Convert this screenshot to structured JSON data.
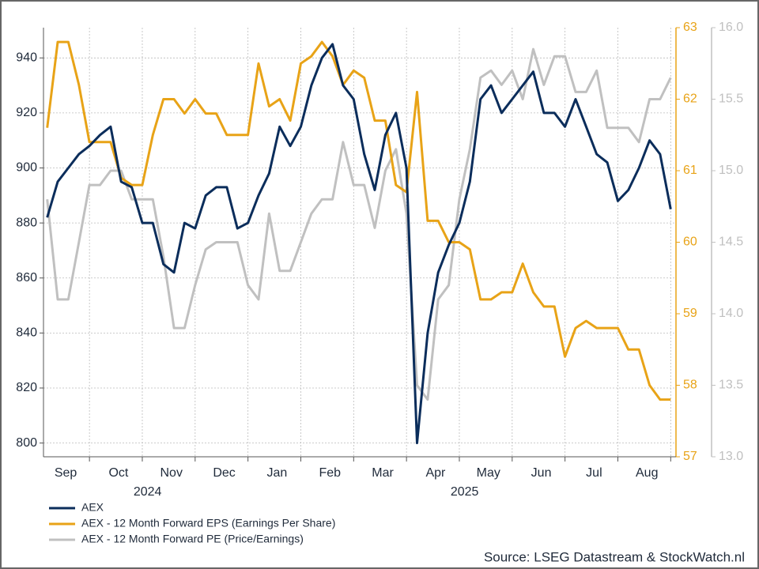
{
  "chart_data": {
    "type": "line",
    "x": [
      0.2,
      0.4,
      0.6,
      0.8,
      1.0,
      1.2,
      1.4,
      1.6,
      1.8,
      2.0,
      2.2,
      2.4,
      2.6,
      2.8,
      3.0,
      3.2,
      3.4,
      3.6,
      3.8,
      4.0,
      4.2,
      4.4,
      4.6,
      4.8,
      5.0,
      5.2,
      5.4,
      5.6,
      5.8,
      6.0,
      6.2,
      6.4,
      6.6,
      6.8,
      7.0,
      7.2,
      7.4,
      7.6,
      7.8,
      8.0,
      8.2,
      8.4,
      8.6,
      8.8,
      9.0,
      9.2,
      9.4,
      9.6,
      9.8,
      10.0,
      10.2,
      10.4,
      10.6,
      10.8,
      11.0,
      11.2,
      11.4,
      11.6,
      11.8,
      12.0
    ],
    "series": [
      {
        "name": "AEX",
        "color": "#0b2d5b",
        "axis": "y",
        "values": [
          882,
          895,
          900,
          905,
          908,
          912,
          915,
          895,
          893,
          880,
          880,
          865,
          862,
          880,
          878,
          890,
          893,
          893,
          878,
          880,
          890,
          898,
          915,
          908,
          915,
          930,
          940,
          945,
          930,
          925,
          905,
          892,
          912,
          920,
          900,
          800,
          840,
          862,
          872,
          880,
          895,
          925,
          930,
          920,
          925,
          930,
          935,
          920,
          920,
          915,
          925,
          915,
          905,
          902,
          888,
          892,
          900,
          910,
          905,
          885
        ]
      },
      {
        "name": "AEX - 12 Month Forward EPS (Earnings Per Share)",
        "color": "#e8a317",
        "axis": "y2",
        "values": [
          61.6,
          62.8,
          62.8,
          62.2,
          61.4,
          61.4,
          61.4,
          60.9,
          60.8,
          60.8,
          61.5,
          62.0,
          62.0,
          61.8,
          62.0,
          61.8,
          61.8,
          61.5,
          61.5,
          61.5,
          62.5,
          61.9,
          62.0,
          61.7,
          62.5,
          62.6,
          62.8,
          62.6,
          62.2,
          62.4,
          62.3,
          61.7,
          61.7,
          60.8,
          60.7,
          62.1,
          60.3,
          60.3,
          60.0,
          60.0,
          59.9,
          59.2,
          59.2,
          59.3,
          59.3,
          59.7,
          59.3,
          59.1,
          59.1,
          58.4,
          58.8,
          58.9,
          58.8,
          58.8,
          58.8,
          58.5,
          58.5,
          58.0,
          57.8,
          57.8
        ]
      },
      {
        "name": "AEX - 12 Month Forward PE (Price/Earnings)",
        "color": "#c0c0c0",
        "axis": "y3",
        "values": [
          14.8,
          14.1,
          14.1,
          14.5,
          14.9,
          14.9,
          15.0,
          15.0,
          14.8,
          14.8,
          14.8,
          14.4,
          13.9,
          13.9,
          14.2,
          14.45,
          14.5,
          14.5,
          14.5,
          14.2,
          14.1,
          14.7,
          14.3,
          14.3,
          14.5,
          14.7,
          14.8,
          14.8,
          15.2,
          14.9,
          14.9,
          14.6,
          15.0,
          15.15,
          14.7,
          13.5,
          13.4,
          14.1,
          14.2,
          14.8,
          15.15,
          15.65,
          15.7,
          15.6,
          15.7,
          15.5,
          15.85,
          15.6,
          15.8,
          15.8,
          15.55,
          15.55,
          15.7,
          15.3,
          15.3,
          15.3,
          15.2,
          15.5,
          15.5,
          15.65
        ]
      }
    ],
    "xlim": [
      0.13,
      12.1
    ],
    "xticks": [
      1,
      2,
      3,
      4,
      5,
      6,
      7,
      8,
      9,
      10,
      11,
      12
    ],
    "month_labels": [
      {
        "value": 0.55,
        "label": "Sep"
      },
      {
        "value": 1.55,
        "label": "Oct"
      },
      {
        "value": 2.55,
        "label": "Nov"
      },
      {
        "value": 3.55,
        "label": "Dec"
      },
      {
        "value": 4.55,
        "label": "Jan"
      },
      {
        "value": 5.55,
        "label": "Feb"
      },
      {
        "value": 6.55,
        "label": "Mar"
      },
      {
        "value": 7.55,
        "label": "Apr"
      },
      {
        "value": 8.55,
        "label": "May"
      },
      {
        "value": 9.55,
        "label": "Jun"
      },
      {
        "value": 10.55,
        "label": "Jul"
      },
      {
        "value": 11.55,
        "label": "Aug"
      }
    ],
    "year_labels": [
      {
        "value": 2.1,
        "label": "2024"
      },
      {
        "value": 8.1,
        "label": "2025"
      }
    ],
    "ylim": [
      795,
      951
    ],
    "yticks": [
      800,
      820,
      840,
      860,
      880,
      900,
      920,
      940
    ],
    "y2lim": [
      57,
      63
    ],
    "y2ticks": [
      57,
      58,
      59,
      60,
      61,
      62,
      63
    ],
    "y3lim": [
      13,
      16
    ],
    "y3ticks": [
      {
        "value": 13,
        "label": "13.0"
      },
      {
        "value": 13.5,
        "label": "13.5"
      },
      {
        "value": 14,
        "label": "14.0"
      },
      {
        "value": 14.5,
        "label": "14.5"
      },
      {
        "value": 15,
        "label": "15.0"
      },
      {
        "value": 15.5,
        "label": "15.5"
      },
      {
        "value": 16,
        "label": "16.0"
      }
    ],
    "grid": true,
    "source": "Source: LSEG Datastream & StockWatch.nl"
  }
}
